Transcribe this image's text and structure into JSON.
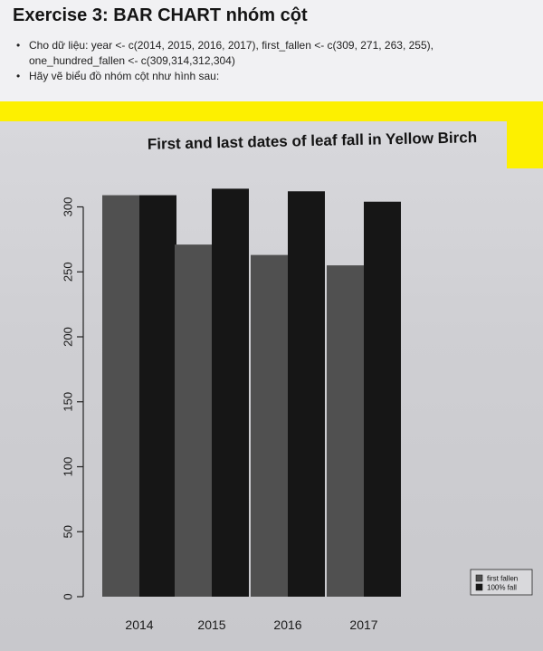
{
  "slide": {
    "title": "Exercise 3: BAR CHART nhóm cột",
    "bullets": [
      "Cho dữ liệu: year <- c(2014, 2015, 2016, 2017), first_fallen <- c(309, 271, 263, 255), one_hundred_fallen <- c(309,314,312,304)",
      "Hãy vẽ biểu đồ nhóm cột như hình sau:"
    ]
  },
  "colors": {
    "highlight": "#fdf000",
    "first_fallen": "#505050",
    "hundred_fall": "#161616"
  },
  "chart_data": {
    "type": "bar",
    "title": "First and last dates of leaf fall in Yellow Birch",
    "xlabel": "",
    "ylabel": "",
    "categories": [
      "2014",
      "2015",
      "2016",
      "2017"
    ],
    "series": [
      {
        "name": "first fallen",
        "values": [
          309,
          271,
          263,
          255
        ]
      },
      {
        "name": "100% fall",
        "values": [
          309,
          314,
          312,
          304
        ]
      }
    ],
    "ylim": [
      0,
      320
    ],
    "yticks": [
      "0",
      "50",
      "100",
      "150",
      "200",
      "250",
      "300"
    ],
    "legend": "bottom-right",
    "grid": false
  }
}
